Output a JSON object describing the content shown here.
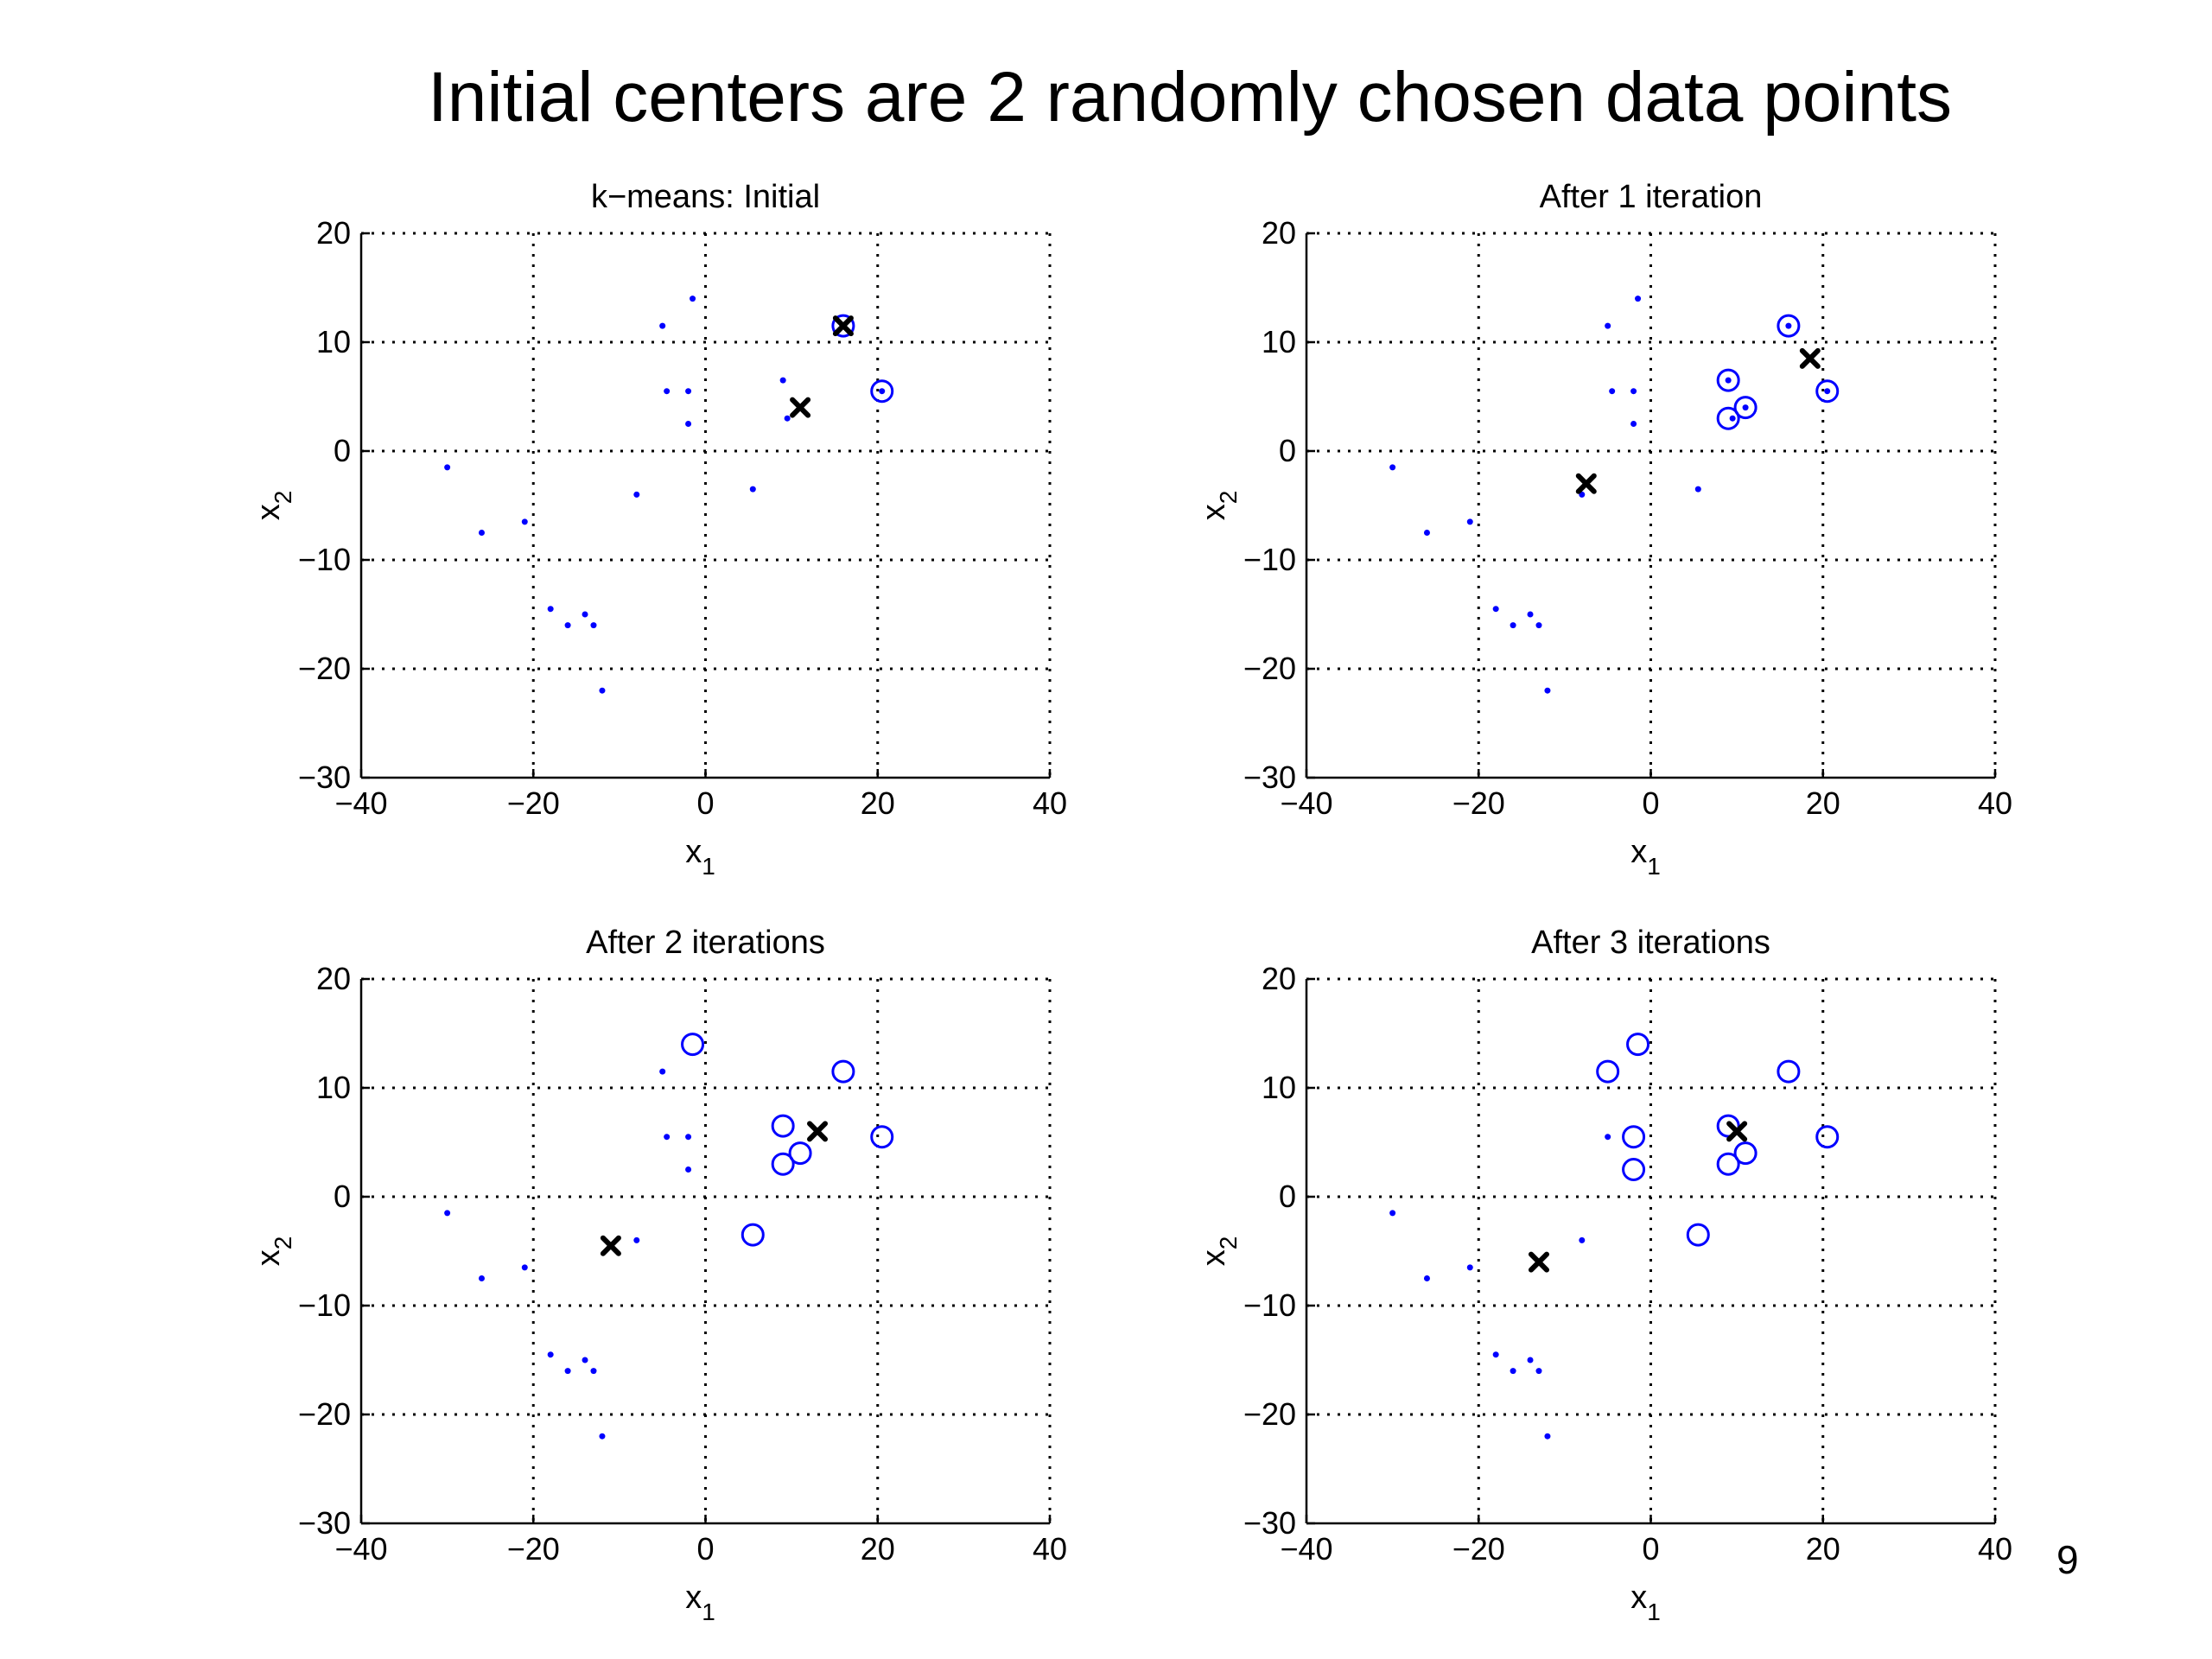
{
  "slide": {
    "title": "Initial centers are 2 randomly chosen data points",
    "page_number": "9"
  },
  "colors": {
    "points": "#0000ff",
    "centers": "#000000",
    "grid": "#000000",
    "axis": "#000000"
  },
  "chart_data": [
    {
      "type": "scatter",
      "title": "k−means: Initial",
      "xlabel": "x",
      "xlabel_sub": "1",
      "ylabel": "x",
      "ylabel_sub": "2",
      "xlim": [
        -40,
        40
      ],
      "ylim": [
        -30,
        20
      ],
      "xticks": [
        -40,
        -20,
        0,
        20,
        40
      ],
      "yticks": [
        -30,
        -20,
        -10,
        0,
        10,
        20
      ],
      "grid": true,
      "points": [
        {
          "x": -30,
          "y": -1.5
        },
        {
          "x": -26,
          "y": -7.5
        },
        {
          "x": -21,
          "y": -6.5
        },
        {
          "x": -18,
          "y": -14.5
        },
        {
          "x": -16,
          "y": -16
        },
        {
          "x": -14,
          "y": -15
        },
        {
          "x": -13,
          "y": -16
        },
        {
          "x": -12,
          "y": -22
        },
        {
          "x": -8,
          "y": -4
        },
        {
          "x": -5,
          "y": 11.5
        },
        {
          "x": -4.5,
          "y": 5.5
        },
        {
          "x": -2,
          "y": 5.5
        },
        {
          "x": -2,
          "y": 2.5
        },
        {
          "x": -1.5,
          "y": 14
        },
        {
          "x": 5.5,
          "y": -3.5
        },
        {
          "x": 9,
          "y": 6.5
        },
        {
          "x": 9.5,
          "y": 3
        },
        {
          "x": 11,
          "y": 4
        },
        {
          "x": 16,
          "y": 11.5
        },
        {
          "x": 20.5,
          "y": 5.5
        }
      ],
      "cluster_points": [
        {
          "x": 16,
          "y": 11.5
        },
        {
          "x": 20.5,
          "y": 5.5
        }
      ],
      "centers": [
        {
          "x": 16,
          "y": 11.5
        },
        {
          "x": 11,
          "y": 4
        }
      ]
    },
    {
      "type": "scatter",
      "title": "After 1 iteration",
      "xlabel": "x",
      "xlabel_sub": "1",
      "ylabel": "x",
      "ylabel_sub": "2",
      "xlim": [
        -40,
        40
      ],
      "ylim": [
        -30,
        20
      ],
      "xticks": [
        -40,
        -20,
        0,
        20,
        40
      ],
      "yticks": [
        -30,
        -20,
        -10,
        0,
        10,
        20
      ],
      "grid": true,
      "points": [
        {
          "x": -30,
          "y": -1.5
        },
        {
          "x": -26,
          "y": -7.5
        },
        {
          "x": -21,
          "y": -6.5
        },
        {
          "x": -18,
          "y": -14.5
        },
        {
          "x": -16,
          "y": -16
        },
        {
          "x": -14,
          "y": -15
        },
        {
          "x": -13,
          "y": -16
        },
        {
          "x": -12,
          "y": -22
        },
        {
          "x": -8,
          "y": -4
        },
        {
          "x": -5,
          "y": 11.5
        },
        {
          "x": -4.5,
          "y": 5.5
        },
        {
          "x": -2,
          "y": 5.5
        },
        {
          "x": -2,
          "y": 2.5
        },
        {
          "x": -1.5,
          "y": 14
        },
        {
          "x": 5.5,
          "y": -3.5
        },
        {
          "x": 9,
          "y": 6.5
        },
        {
          "x": 9.5,
          "y": 3
        },
        {
          "x": 11,
          "y": 4
        },
        {
          "x": 16,
          "y": 11.5
        },
        {
          "x": 20.5,
          "y": 5.5
        }
      ],
      "cluster_points": [
        {
          "x": 9,
          "y": 6.5
        },
        {
          "x": 9,
          "y": 3
        },
        {
          "x": 11,
          "y": 4
        },
        {
          "x": 16,
          "y": 11.5
        },
        {
          "x": 20.5,
          "y": 5.5
        }
      ],
      "centers": [
        {
          "x": 18.5,
          "y": 8.5
        },
        {
          "x": -7.5,
          "y": -3
        }
      ]
    },
    {
      "type": "scatter",
      "title": "After 2 iterations",
      "xlabel": "x",
      "xlabel_sub": "1",
      "ylabel": "x",
      "ylabel_sub": "2",
      "xlim": [
        -40,
        40
      ],
      "ylim": [
        -30,
        20
      ],
      "xticks": [
        -40,
        -20,
        0,
        20,
        40
      ],
      "yticks": [
        -30,
        -20,
        -10,
        0,
        10,
        20
      ],
      "grid": true,
      "points": [
        {
          "x": -30,
          "y": -1.5
        },
        {
          "x": -26,
          "y": -7.5
        },
        {
          "x": -21,
          "y": -6.5
        },
        {
          "x": -18,
          "y": -14.5
        },
        {
          "x": -16,
          "y": -16
        },
        {
          "x": -14,
          "y": -15
        },
        {
          "x": -13,
          "y": -16
        },
        {
          "x": -12,
          "y": -22
        },
        {
          "x": -8,
          "y": -4
        },
        {
          "x": -5,
          "y": 11.5
        },
        {
          "x": -4.5,
          "y": 5.5
        },
        {
          "x": -2,
          "y": 5.5
        },
        {
          "x": -2,
          "y": 2.5
        }
      ],
      "cluster_points": [
        {
          "x": -1.5,
          "y": 14
        },
        {
          "x": 16,
          "y": 11.5
        },
        {
          "x": 9,
          "y": 6.5
        },
        {
          "x": 11,
          "y": 4
        },
        {
          "x": 9,
          "y": 3
        },
        {
          "x": 20.5,
          "y": 5.5
        },
        {
          "x": 5.5,
          "y": -3.5
        }
      ],
      "centers": [
        {
          "x": 13,
          "y": 6
        },
        {
          "x": -11,
          "y": -4.5
        }
      ]
    },
    {
      "type": "scatter",
      "title": "After 3 iterations",
      "xlabel": "x",
      "xlabel_sub": "1",
      "ylabel": "x",
      "ylabel_sub": "2",
      "xlim": [
        -40,
        40
      ],
      "ylim": [
        -30,
        20
      ],
      "xticks": [
        -40,
        -20,
        0,
        20,
        40
      ],
      "yticks": [
        -30,
        -20,
        -10,
        0,
        10,
        20
      ],
      "grid": true,
      "points": [
        {
          "x": -30,
          "y": -1.5
        },
        {
          "x": -26,
          "y": -7.5
        },
        {
          "x": -21,
          "y": -6.5
        },
        {
          "x": -18,
          "y": -14.5
        },
        {
          "x": -16,
          "y": -16
        },
        {
          "x": -14,
          "y": -15
        },
        {
          "x": -13,
          "y": -16
        },
        {
          "x": -12,
          "y": -22
        },
        {
          "x": -8,
          "y": -4
        },
        {
          "x": -5,
          "y": 5.5
        }
      ],
      "cluster_points": [
        {
          "x": -5,
          "y": 11.5
        },
        {
          "x": -1.5,
          "y": 14
        },
        {
          "x": -2,
          "y": 5.5
        },
        {
          "x": -2,
          "y": 2.5
        },
        {
          "x": 9,
          "y": 6.5
        },
        {
          "x": 11,
          "y": 4
        },
        {
          "x": 9,
          "y": 3
        },
        {
          "x": 16,
          "y": 11.5
        },
        {
          "x": 20.5,
          "y": 5.5
        },
        {
          "x": 5.5,
          "y": -3.5
        }
      ],
      "centers": [
        {
          "x": 10,
          "y": 6
        },
        {
          "x": -13,
          "y": -6
        }
      ]
    }
  ]
}
